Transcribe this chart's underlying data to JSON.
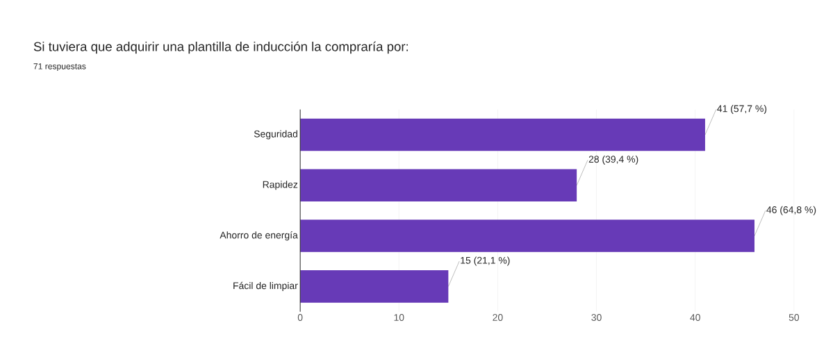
{
  "chart_data": {
    "type": "bar",
    "orientation": "horizontal",
    "title": "Si tuviera que adquirir una plantilla de inducción la compraría por:",
    "subtitle": "71 respuestas",
    "categories": [
      "Seguridad",
      "Rapidez",
      "Ahorro de energía",
      "Fácil de limpiar"
    ],
    "values": [
      41,
      28,
      46,
      15
    ],
    "value_labels": [
      "41 (57,7 %)",
      "28 (39,4 %)",
      "46 (64,8 %)",
      "15 (21,1 %)"
    ],
    "color": "#673ab7",
    "xlim": [
      0,
      50
    ],
    "xticks": [
      0,
      10,
      20,
      30,
      40,
      50
    ],
    "grid": "x"
  }
}
